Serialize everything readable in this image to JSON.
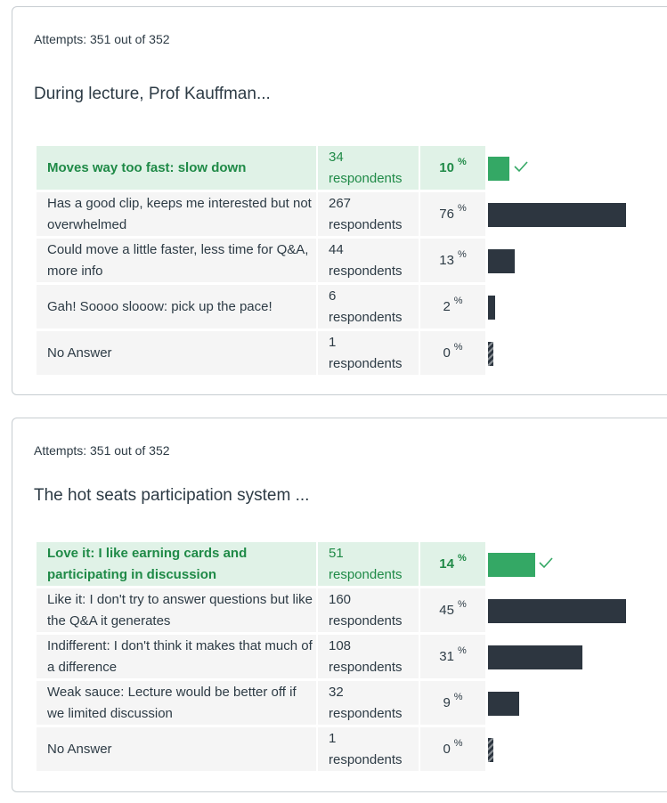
{
  "colors": {
    "correct_bg": "#e0f2e7",
    "correct_text": "#1f8a47",
    "correct_bar": "#34a865",
    "bar": "#2d3640"
  },
  "questions": [
    {
      "attempts": "Attempts: 351 out of 352",
      "text": "During lecture, Prof Kauffman...",
      "answers": [
        {
          "label": "Moves way too fast: slow down",
          "count": "34",
          "resp": "respondents",
          "pct_num": "10",
          "pct_sign": "%",
          "pct": 10,
          "correct": true
        },
        {
          "label": "Has a good clip, keeps me interested but not overwhelmed",
          "count": "267",
          "resp": "respondents",
          "pct_num": "76",
          "pct_sign": "%",
          "pct": 76
        },
        {
          "label": "Could move a little faster, less time for Q&A, more info",
          "count": "44",
          "resp": "respondents",
          "pct_num": "13",
          "pct_sign": "%",
          "pct": 13
        },
        {
          "label": "Gah! Soooo slooow: pick up the pace!",
          "count": "6",
          "resp": "respondents",
          "pct_num": "2",
          "pct_sign": "%",
          "pct": 2
        },
        {
          "label": "No Answer",
          "count": "1",
          "resp": "respondents",
          "pct_num": "0",
          "pct_sign": "%",
          "pct": 0
        }
      ]
    },
    {
      "attempts": "Attempts: 351 out of 352",
      "text": "The hot seats participation system ...",
      "answers": [
        {
          "label": "Love it: I like earning cards and participating in discussion",
          "count": "51",
          "resp": "respondents",
          "pct_num": "14",
          "pct_sign": "%",
          "pct": 14,
          "correct": true
        },
        {
          "label": "Like it: I don't try to answer questions but like the Q&A it generates",
          "count": "160",
          "resp": "respondents",
          "pct_num": "45",
          "pct_sign": "%",
          "pct": 45
        },
        {
          "label": "Indifferent: I don't think it makes that much of a difference",
          "count": "108",
          "resp": "respondents",
          "pct_num": "31",
          "pct_sign": "%",
          "pct": 31
        },
        {
          "label": "Weak sauce: Lecture would be better off if we limited discussion",
          "count": "32",
          "resp": "respondents",
          "pct_num": "9",
          "pct_sign": "%",
          "pct": 9
        },
        {
          "label": "No Answer",
          "count": "1",
          "resp": "respondents",
          "pct_num": "0",
          "pct_sign": "%",
          "pct": 0
        }
      ]
    }
  ]
}
